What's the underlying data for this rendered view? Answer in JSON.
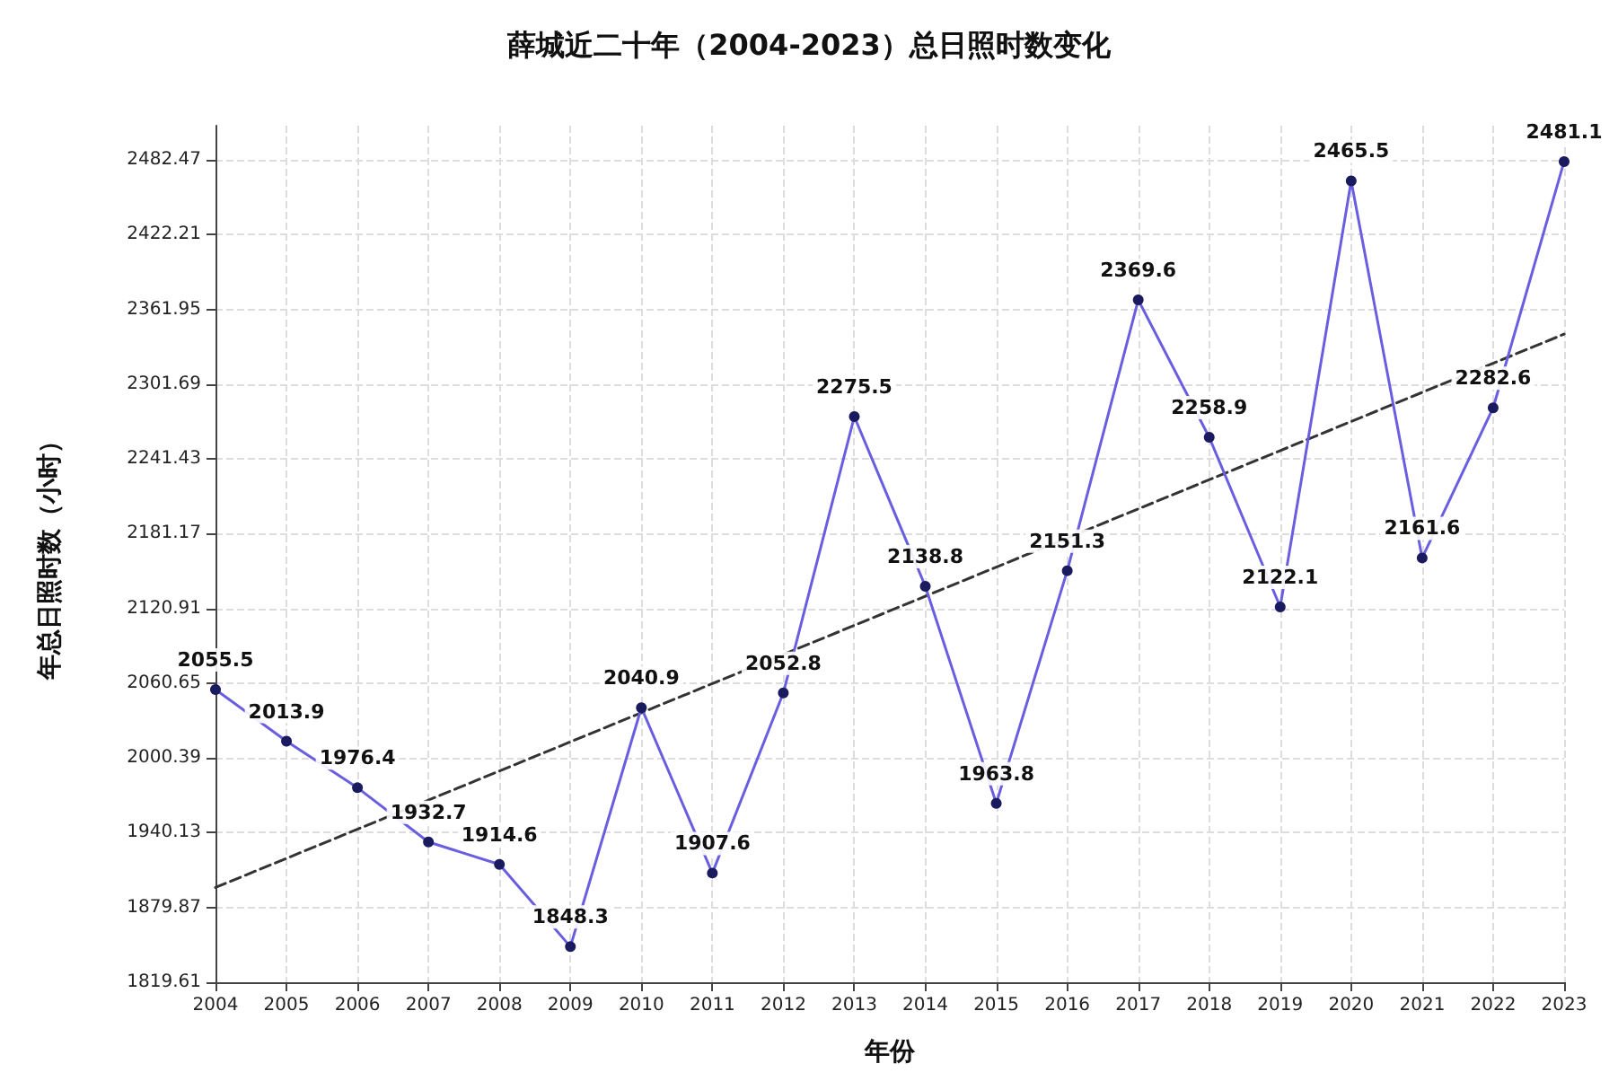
{
  "chart_data": {
    "type": "line",
    "title": "薛城近二十年（2004-2023）总日照时数变化",
    "xlabel": "年份",
    "ylabel": "年总日照时数（小时）",
    "categories": [
      "2004",
      "2005",
      "2006",
      "2007",
      "2008",
      "2009",
      "2010",
      "2011",
      "2012",
      "2013",
      "2014",
      "2015",
      "2016",
      "2017",
      "2018",
      "2019",
      "2020",
      "2021",
      "2022",
      "2023"
    ],
    "series": [
      {
        "color": "#6a5ee0",
        "marker": "circle",
        "line_style": "solid",
        "values": [
          2055.5,
          2013.9,
          1976.4,
          1932.7,
          1914.6,
          1848.3,
          2040.9,
          1907.6,
          2052.8,
          2275.5,
          2138.8,
          1963.8,
          2151.3,
          2369.6,
          2258.9,
          2122.1,
          2465.5,
          2161.6,
          2282.6,
          2481.1
        ],
        "value_labels": [
          "2055.5",
          "2013.9",
          "1976.4",
          "1932.7",
          "1914.6",
          "1848.3",
          "2040.9",
          "1907.6",
          "2052.8",
          "2275.5",
          "2138.8",
          "1963.8",
          "2151.3",
          "2369.6",
          "2258.9",
          "2122.1",
          "2465.5",
          "2161.6",
          "2282.6",
          "2481.1"
        ]
      },
      {
        "type": "line",
        "color": "#333333",
        "marker": "none",
        "line_style": "dashed",
        "values": [
          1896,
          null,
          null,
          null,
          null,
          null,
          null,
          null,
          null,
          null,
          null,
          null,
          null,
          null,
          null,
          null,
          null,
          null,
          null,
          2342
        ]
      }
    ],
    "ylim": [
      1819.61,
      2510
    ],
    "yticks": [
      1819.61,
      1879.87,
      1940.13,
      2000.39,
      2060.65,
      2120.91,
      2181.17,
      2241.43,
      2301.69,
      2361.95,
      2422.21,
      2482.47
    ],
    "grid": true
  }
}
